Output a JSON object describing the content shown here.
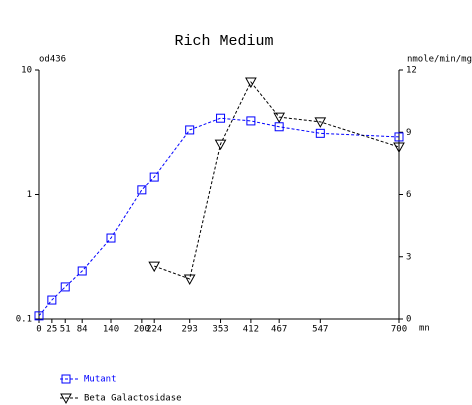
{
  "chart_data": {
    "type": "line",
    "title": "Rich Medium",
    "y_label": "od436",
    "y2_label": "nmole/min/mg",
    "x_label": "mn",
    "x": [
      0,
      25,
      51,
      84,
      140,
      200,
      224,
      293,
      353,
      412,
      467,
      547,
      700
    ],
    "xlim": [
      0,
      700
    ],
    "xticks": [
      0,
      25,
      51,
      84,
      140,
      200,
      224,
      293,
      353,
      412,
      467,
      547,
      700
    ],
    "yscale": "log",
    "ylim": [
      0.1,
      10
    ],
    "yticks": [
      0.1,
      1,
      10
    ],
    "y2lim": [
      0,
      12
    ],
    "y2ticks": [
      0,
      3,
      6,
      9,
      12
    ],
    "series": [
      {
        "name": "Mutant",
        "color": "#0000ff",
        "marker": "square",
        "values": [
          0.106,
          0.142,
          0.181,
          0.243,
          0.447,
          1.09,
          1.38,
          3.3,
          4.1,
          3.9,
          3.5,
          3.1,
          2.9
        ]
      },
      {
        "name": "Beta Galactosidase",
        "color": "#000000",
        "marker": "triangle-down",
        "axis": "y2",
        "values": [
          null,
          null,
          null,
          null,
          null,
          null,
          2.55,
          1.93,
          8.43,
          11.42,
          9.73,
          9.5,
          8.29
        ]
      }
    ]
  }
}
